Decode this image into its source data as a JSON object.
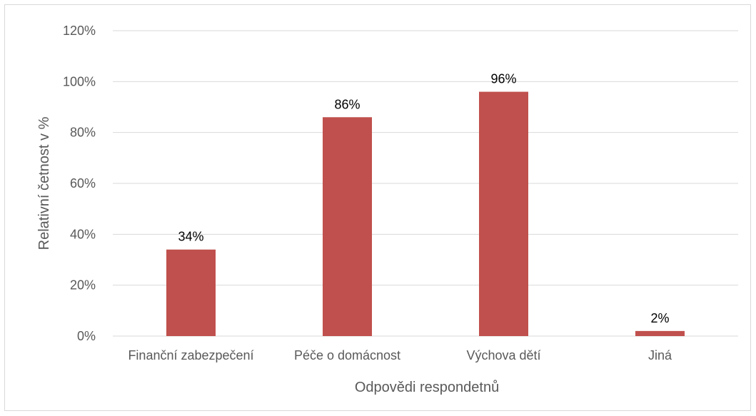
{
  "chart_data": {
    "type": "bar",
    "categories": [
      "Finanční zabezpečení",
      "Péče o domácnost",
      "Výchova dětí",
      "Jiná"
    ],
    "values": [
      34,
      86,
      96,
      2
    ],
    "data_labels": [
      "34%",
      "86%",
      "96%",
      "2%"
    ],
    "title": "",
    "xlabel": "Odpovědi respondetnů",
    "ylabel": "Relativní četnost v %",
    "ylim": [
      0,
      120
    ],
    "yticks": [
      0,
      20,
      40,
      60,
      80,
      100,
      120
    ],
    "ytick_labels": [
      "0%",
      "20%",
      "40%",
      "60%",
      "80%",
      "100%",
      "120%"
    ],
    "grid": true,
    "legend": "none",
    "bar_color": "#c0504d",
    "grid_color": "#d9d9d9"
  }
}
